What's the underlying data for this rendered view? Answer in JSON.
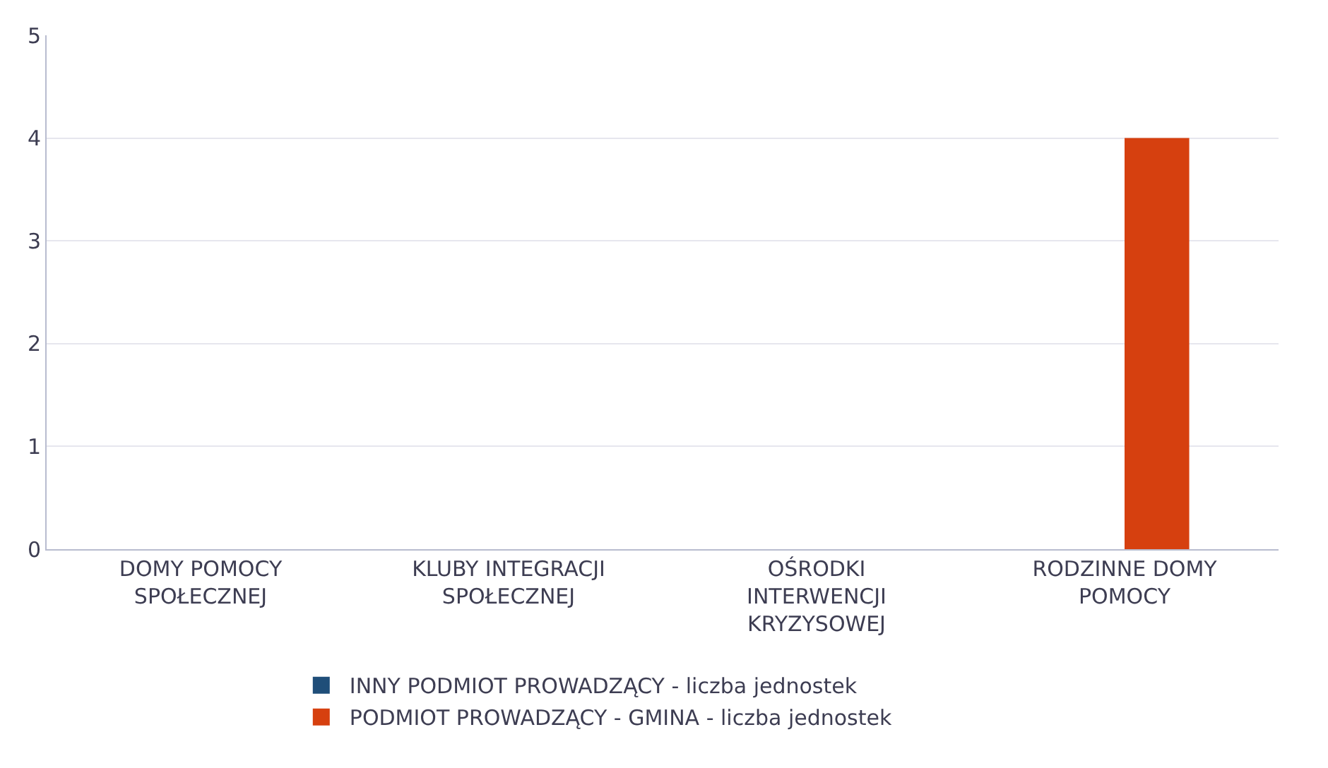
{
  "chart_data": {
    "type": "bar",
    "categories": [
      "DOMY POMOCY SPOŁECZNEJ",
      "KLUBY INTEGRACJI SPOŁECZNEJ",
      "OŚRODKI INTERWENCJI KRYZYSOWEJ",
      "RODZINNE DOMY POMOCY"
    ],
    "series": [
      {
        "name": "INNY PODMIOT PROWADZĄCY - liczba jednostek",
        "color": "#1f4e79",
        "values": [
          0,
          0,
          0,
          0
        ]
      },
      {
        "name": "PODMIOT PROWADZĄCY - GMINA - liczba jednostek",
        "color": "#d6400f",
        "values": [
          0,
          0,
          0,
          4
        ]
      }
    ],
    "ylim": [
      0,
      5
    ],
    "yticks": [
      0,
      1,
      2,
      3,
      4,
      5
    ],
    "grid": "y",
    "legend": "bottom"
  }
}
